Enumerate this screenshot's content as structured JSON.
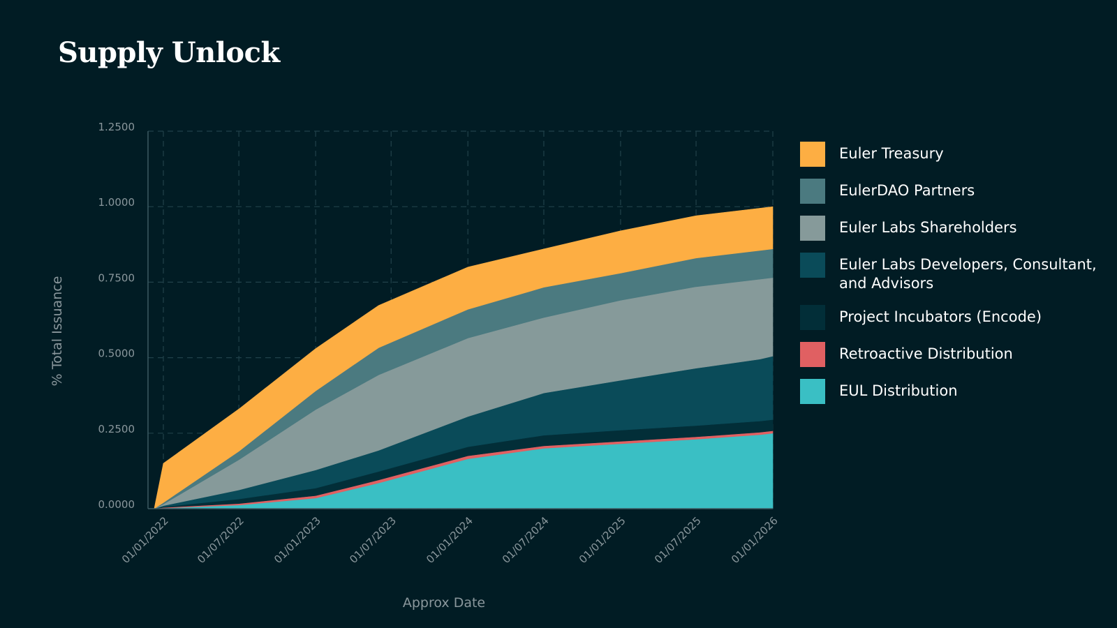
{
  "title": "Supply Unlock",
  "chart_data": {
    "type": "area",
    "stacked": true,
    "title": "Supply Unlock",
    "xlabel": "Approx Date",
    "ylabel": "% Total Issuance",
    "ylim": [
      0,
      1.25
    ],
    "yticks": [
      "0.0000",
      "0.2500",
      "0.5000",
      "0.7500",
      "1.0000",
      "1.2500"
    ],
    "xticks": [
      "01/01/2022",
      "01/07/2022",
      "01/01/2023",
      "01/07/2023",
      "01/01/2024",
      "01/07/2024",
      "01/01/2025",
      "01/07/2025",
      "01/01/2026"
    ],
    "grid": true,
    "legend_position": "right",
    "x": [
      "2021-12-10",
      "2022-01-01",
      "2022-07-01",
      "2023-01-01",
      "2023-06-01",
      "2024-01-01",
      "2024-07-01",
      "2025-01-01",
      "2025-07-01",
      "2025-12-01",
      "2026-01-01"
    ],
    "series": [
      {
        "name": "EUL Distribution",
        "color": "#3abfc4",
        "values": [
          0,
          0.002,
          0.012,
          0.035,
          0.085,
          0.165,
          0.2,
          0.215,
          0.23,
          0.245,
          0.25
        ]
      },
      {
        "name": "Retroactive Distribution",
        "color": "#e06062",
        "values": [
          0,
          0.002,
          0.005,
          0.008,
          0.01,
          0.01,
          0.008,
          0.008,
          0.008,
          0.008,
          0.008
        ]
      },
      {
        "name": "Project Incubators (Encode)",
        "color": "#022e38",
        "values": [
          0,
          0.002,
          0.015,
          0.025,
          0.028,
          0.03,
          0.035,
          0.037,
          0.037,
          0.037,
          0.037
        ]
      },
      {
        "name": "Euler Labs Developers, Consultant, and Advisors",
        "color": "#0a4b59",
        "values": [
          0,
          0.004,
          0.03,
          0.06,
          0.07,
          0.1,
          0.14,
          0.165,
          0.19,
          0.205,
          0.21
        ]
      },
      {
        "name": "Euler Labs Shareholders",
        "color": "#869a9a",
        "values": [
          0,
          0.005,
          0.1,
          0.2,
          0.25,
          0.26,
          0.25,
          0.265,
          0.27,
          0.265,
          0.26
        ]
      },
      {
        "name": "EulerDAO Partners",
        "color": "#4b7a80",
        "values": [
          0,
          0.005,
          0.028,
          0.062,
          0.09,
          0.095,
          0.1,
          0.09,
          0.095,
          0.095,
          0.095
        ]
      },
      {
        "name": "Euler Treasury",
        "color": "#fdae43",
        "values": [
          0,
          0.13,
          0.14,
          0.14,
          0.14,
          0.14,
          0.127,
          0.14,
          0.14,
          0.14,
          0.14
        ]
      }
    ]
  },
  "legend": [
    {
      "label": "Euler Treasury",
      "color": "#fdae43"
    },
    {
      "label": "EulerDAO Partners",
      "color": "#4b7a80"
    },
    {
      "label": "Euler Labs Shareholders",
      "color": "#869a9a"
    },
    {
      "label": "Euler Labs Developers, Consultant, and Advisors",
      "color": "#0a4b59"
    },
    {
      "label": "Project Incubators (Encode)",
      "color": "#022e38"
    },
    {
      "label": "Retroactive Distribution",
      "color": "#e06062"
    },
    {
      "label": "EUL Distribution",
      "color": "#3abfc4"
    }
  ]
}
